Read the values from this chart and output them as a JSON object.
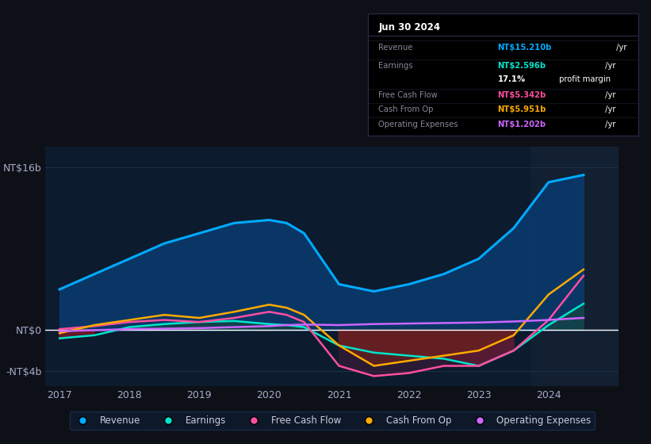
{
  "bg_color": "#0d1117",
  "plot_bg_color": "#0d1b2e",
  "grid_color": "#1e3050",
  "zero_line_color": "#ffffff",
  "yticks": [
    -4,
    0,
    16
  ],
  "ytick_labels": [
    "-NT$4b",
    "NT$0",
    "NT$16b"
  ],
  "ylim": [
    -5.5,
    18
  ],
  "xlim": [
    2016.8,
    2025.0
  ],
  "xticks": [
    2017,
    2018,
    2019,
    2020,
    2021,
    2022,
    2023,
    2024
  ],
  "years": [
    2017.0,
    2017.5,
    2018.0,
    2018.5,
    2019.0,
    2019.5,
    2020.0,
    2020.25,
    2020.5,
    2021.0,
    2021.5,
    2022.0,
    2022.5,
    2023.0,
    2023.5,
    2024.0,
    2024.5
  ],
  "revenue": [
    4.0,
    5.5,
    7.0,
    8.5,
    9.5,
    10.5,
    10.8,
    10.5,
    9.5,
    4.5,
    3.8,
    4.5,
    5.5,
    7.0,
    10.0,
    14.5,
    15.21
  ],
  "earnings": [
    -0.8,
    -0.5,
    0.3,
    0.6,
    0.8,
    0.9,
    0.6,
    0.5,
    0.3,
    -1.5,
    -2.2,
    -2.5,
    -2.8,
    -3.5,
    -2.0,
    0.5,
    2.596
  ],
  "free_cash_flow": [
    0.1,
    0.4,
    0.8,
    1.0,
    0.8,
    1.2,
    1.8,
    1.5,
    0.8,
    -3.5,
    -4.5,
    -4.2,
    -3.5,
    -3.5,
    -2.0,
    1.0,
    5.342
  ],
  "cash_from_op": [
    -0.3,
    0.5,
    1.0,
    1.5,
    1.2,
    1.8,
    2.5,
    2.2,
    1.5,
    -1.5,
    -3.5,
    -3.0,
    -2.5,
    -2.0,
    -0.5,
    3.5,
    5.951
  ],
  "operating_expenses": [
    -0.1,
    0.0,
    0.1,
    0.15,
    0.2,
    0.3,
    0.4,
    0.5,
    0.55,
    0.5,
    0.6,
    0.65,
    0.7,
    0.75,
    0.85,
    1.0,
    1.202
  ],
  "revenue_color": "#00aaff",
  "revenue_fill": "#0a3a6e",
  "earnings_color": "#00e5cc",
  "earnings_fill": "#7a1a2a",
  "free_cash_flow_color": "#ff4fa0",
  "cash_from_op_color": "#ffaa00",
  "cash_from_op_fill": "#8b2a00",
  "operating_expenses_color": "#cc66ff",
  "tooltip_bg": "#000000",
  "tooltip_border": "#2a2a4a",
  "legend_bg": "#0d1b2e",
  "legend_border": "#1e3050"
}
